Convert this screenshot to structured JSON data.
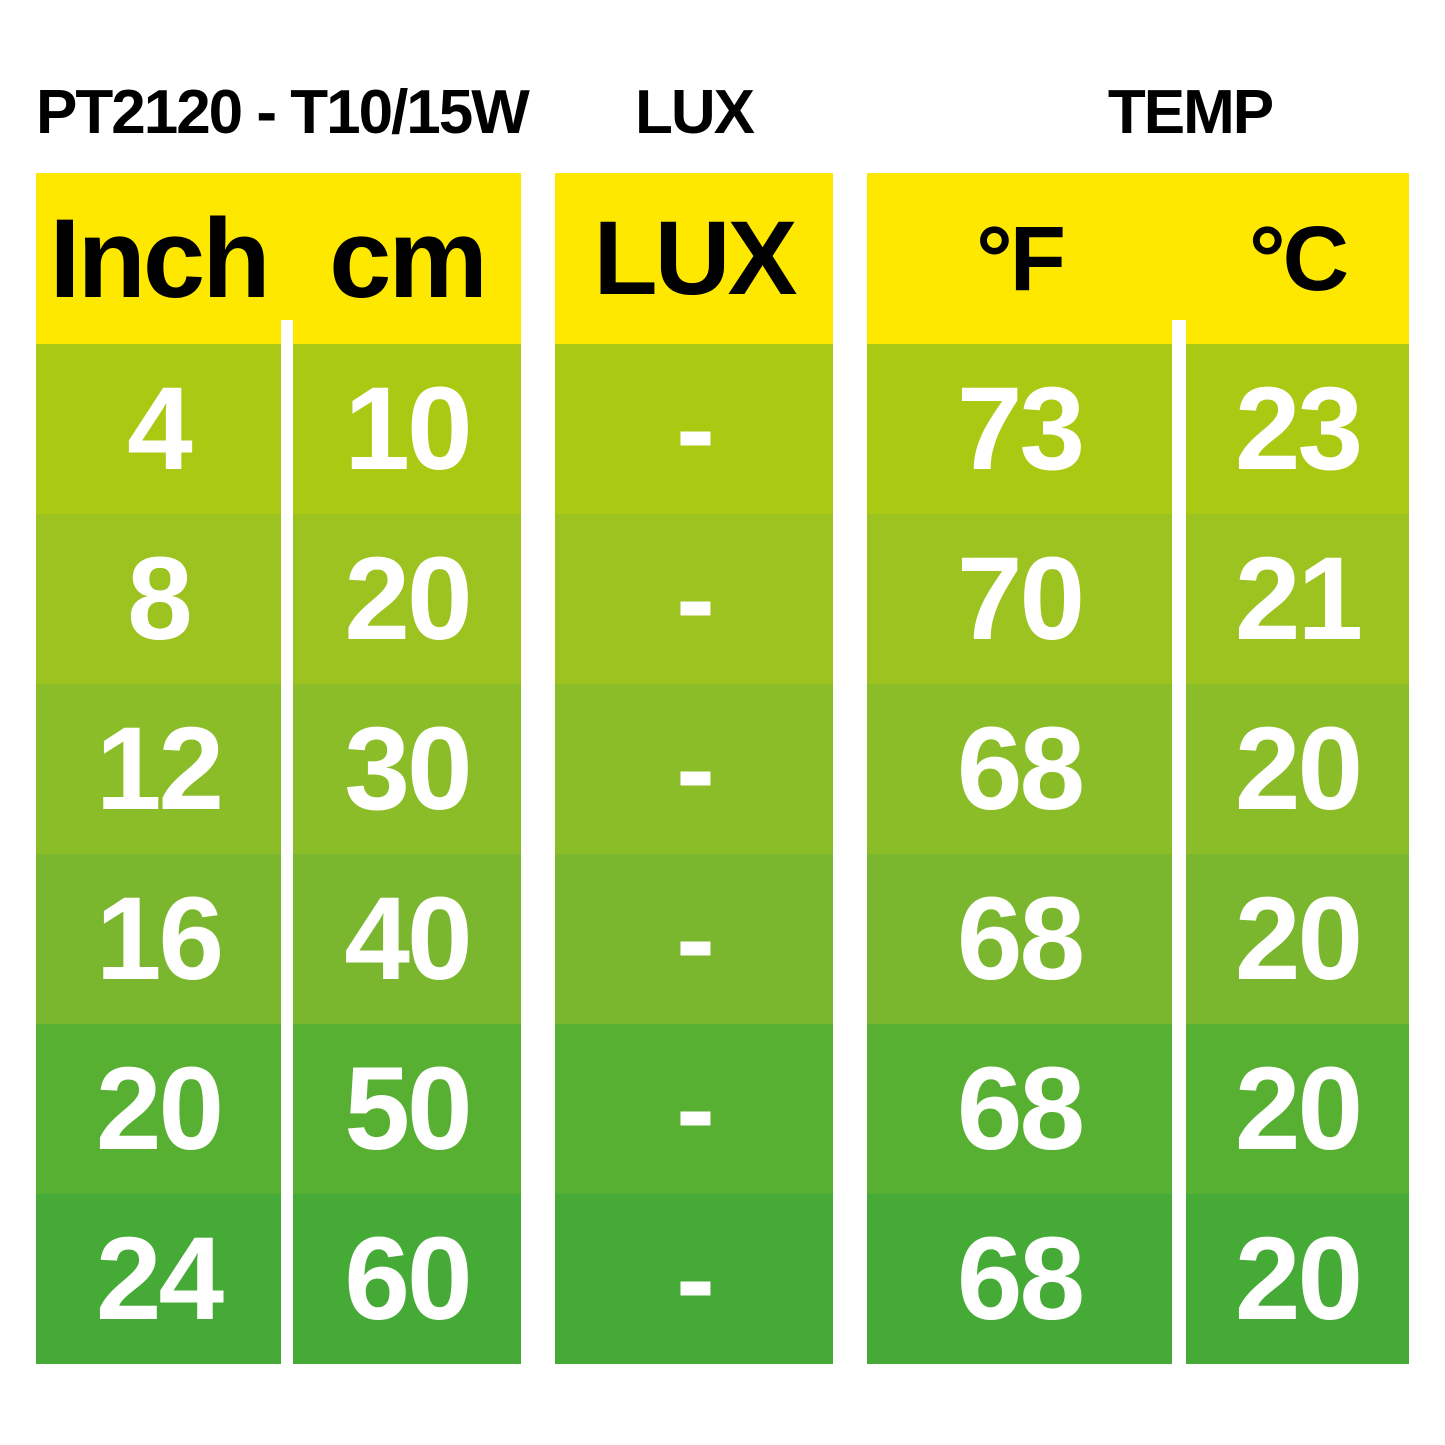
{
  "header": {
    "title": "PT2120 - T10/15W",
    "lux_label": "LUX",
    "temp_label": "TEMP"
  },
  "columns": {
    "inch": "Inch",
    "cm": "cm",
    "lux": "LUX",
    "fahrenheit": "°F",
    "celsius": "°C"
  },
  "rows": [
    {
      "inch": "4",
      "cm": "10",
      "lux": "-",
      "f": "73",
      "c": "23"
    },
    {
      "inch": "8",
      "cm": "20",
      "lux": "-",
      "f": "70",
      "c": "21"
    },
    {
      "inch": "12",
      "cm": "30",
      "lux": "-",
      "f": "68",
      "c": "20"
    },
    {
      "inch": "16",
      "cm": "40",
      "lux": "-",
      "f": "68",
      "c": "20"
    },
    {
      "inch": "20",
      "cm": "50",
      "lux": "-",
      "f": "68",
      "c": "20"
    },
    {
      "inch": "24",
      "cm": "60",
      "lux": "-",
      "f": "68",
      "c": "20"
    }
  ],
  "colors": {
    "header_yellow": "#ffe800",
    "row_greens": [
      "#a9c913",
      "#9cc31f",
      "#8abd28",
      "#7ab72f",
      "#58b033",
      "#45aa36"
    ],
    "value_text": "#ffffff",
    "label_text": "#000000"
  },
  "chart_data": {
    "type": "table",
    "title": "PT2120 - T10/15W",
    "column_groups": [
      {
        "label": "PT2120 - T10/15W",
        "columns": [
          "Inch",
          "cm"
        ]
      },
      {
        "label": "LUX",
        "columns": [
          "LUX"
        ]
      },
      {
        "label": "TEMP",
        "columns": [
          "°F",
          "°C"
        ]
      }
    ],
    "columns": [
      "Inch",
      "cm",
      "LUX",
      "°F",
      "°C"
    ],
    "rows": [
      {
        "Inch": 4,
        "cm": 10,
        "LUX": "-",
        "°F": 73,
        "°C": 23
      },
      {
        "Inch": 8,
        "cm": 20,
        "LUX": "-",
        "°F": 70,
        "°C": 21
      },
      {
        "Inch": 12,
        "cm": 30,
        "LUX": "-",
        "°F": 68,
        "°C": 20
      },
      {
        "Inch": 16,
        "cm": 40,
        "LUX": "-",
        "°F": 68,
        "°C": 20
      },
      {
        "Inch": 20,
        "cm": 50,
        "LUX": "-",
        "°F": 68,
        "°C": 20
      },
      {
        "Inch": 24,
        "cm": 60,
        "LUX": "-",
        "°F": 68,
        "°C": 20
      }
    ]
  }
}
